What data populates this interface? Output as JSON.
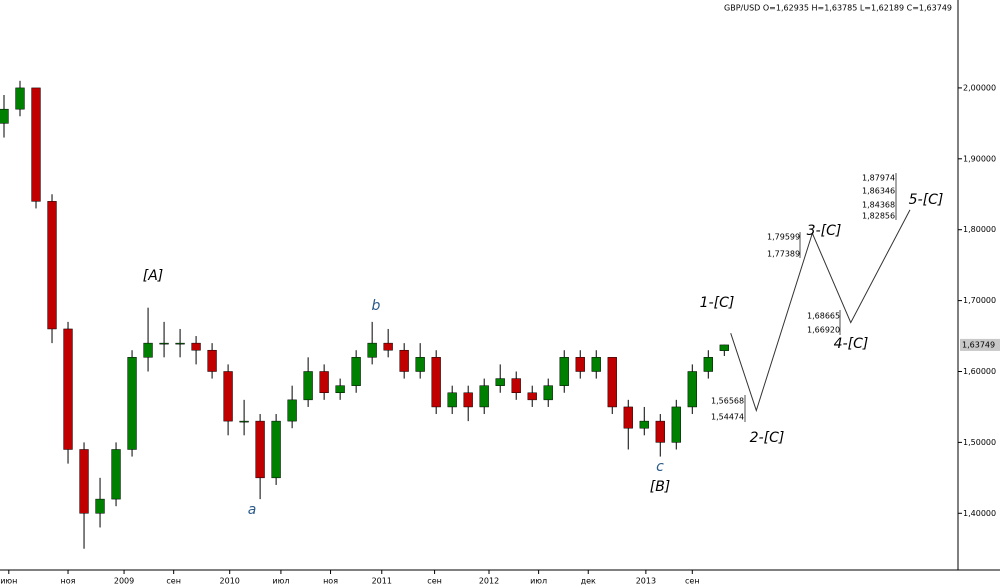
{
  "chart_data": {
    "type": "candlestick",
    "header": "GBP/USD O=1,62935 H=1,63785 L=1,62189 C=1,63749",
    "open": [
      1.95,
      1.97,
      2.0,
      1.84,
      1.66,
      1.49,
      1.4,
      1.42,
      1.49,
      1.62,
      1.64,
      1.64,
      1.64,
      1.63,
      1.6,
      1.53,
      1.53,
      1.45,
      1.53,
      1.56,
      1.6,
      1.57,
      1.58,
      1.62,
      1.64,
      1.63,
      1.6,
      1.62,
      1.55,
      1.57,
      1.55,
      1.58,
      1.59,
      1.57,
      1.56,
      1.58,
      1.62,
      1.6,
      1.62,
      1.55,
      1.52,
      1.53,
      1.5,
      1.55,
      1.6,
      1.62935
    ],
    "high": [
      1.99,
      2.01,
      2.0,
      1.85,
      1.67,
      1.5,
      1.45,
      1.5,
      1.63,
      1.69,
      1.67,
      1.66,
      1.65,
      1.64,
      1.61,
      1.56,
      1.54,
      1.54,
      1.58,
      1.62,
      1.61,
      1.59,
      1.63,
      1.67,
      1.66,
      1.64,
      1.64,
      1.63,
      1.58,
      1.58,
      1.59,
      1.61,
      1.6,
      1.58,
      1.59,
      1.63,
      1.63,
      1.63,
      1.62,
      1.56,
      1.55,
      1.54,
      1.56,
      1.61,
      1.63,
      1.63785
    ],
    "low": [
      1.93,
      1.96,
      1.83,
      1.64,
      1.47,
      1.35,
      1.38,
      1.41,
      1.48,
      1.6,
      1.62,
      1.62,
      1.61,
      1.59,
      1.51,
      1.51,
      1.42,
      1.44,
      1.52,
      1.55,
      1.56,
      1.56,
      1.57,
      1.61,
      1.62,
      1.59,
      1.59,
      1.54,
      1.54,
      1.53,
      1.54,
      1.57,
      1.56,
      1.55,
      1.55,
      1.57,
      1.59,
      1.59,
      1.54,
      1.49,
      1.51,
      1.48,
      1.49,
      1.54,
      1.59,
      1.62189
    ],
    "close": [
      1.97,
      2.0,
      1.84,
      1.66,
      1.49,
      1.4,
      1.42,
      1.49,
      1.62,
      1.64,
      1.64,
      1.64,
      1.63,
      1.6,
      1.53,
      1.53,
      1.45,
      1.53,
      1.56,
      1.6,
      1.57,
      1.58,
      1.62,
      1.64,
      1.63,
      1.6,
      1.62,
      1.55,
      1.57,
      1.55,
      1.58,
      1.59,
      1.57,
      1.56,
      1.58,
      1.62,
      1.6,
      1.62,
      1.55,
      1.52,
      1.53,
      1.5,
      1.55,
      1.6,
      1.62,
      1.63749
    ],
    "up_color": "#008000",
    "down_color": "#c00000",
    "projection": {
      "x": [
        45.4,
        47,
        50.5,
        52.9,
        56.6
      ],
      "values": [
        1.654,
        1.545,
        1.795,
        1.669,
        1.828
      ],
      "color": "#333333"
    },
    "last_label": "1,63749",
    "xlim": [
      -0.25,
      59.6
    ],
    "xticks": [
      {
        "value": 0.3,
        "label": "июн"
      },
      {
        "value": 4,
        "label": "ноя"
      },
      {
        "value": 7.5,
        "label": "2009"
      },
      {
        "value": 10.6,
        "label": "сен"
      },
      {
        "value": 14.1,
        "label": "2010"
      },
      {
        "value": 17.3,
        "label": "июл"
      },
      {
        "value": 20.4,
        "label": "ноя"
      },
      {
        "value": 23.6,
        "label": "2011"
      },
      {
        "value": 26.9,
        "label": "сен"
      },
      {
        "value": 30.3,
        "label": "2012"
      },
      {
        "value": 33.4,
        "label": "июл"
      },
      {
        "value": 36.5,
        "label": "дек"
      },
      {
        "value": 40.1,
        "label": "2013"
      },
      {
        "value": 43,
        "label": "сен"
      }
    ],
    "ylim": [
      1.32,
      2.124
    ],
    "yticks": [
      {
        "value": 1.4,
        "label": "1,40000"
      },
      {
        "value": 1.5,
        "label": "1,50000"
      },
      {
        "value": 1.6,
        "label": "1,60000"
      },
      {
        "value": 1.7,
        "label": "1,70000"
      },
      {
        "value": 1.8,
        "label": "1,80000"
      },
      {
        "value": 1.9,
        "label": "1,90000"
      },
      {
        "value": 2.0,
        "label": "2,00000"
      }
    ],
    "wave_labels": [
      "[A]",
      "b",
      "a",
      "c",
      "[B]",
      "1-[C]",
      "2-[C]",
      "3-[C]",
      "4-[C]",
      "5-[C]"
    ],
    "level_labels": [
      "1,56568",
      "1,54474",
      "1,79599",
      "1,77389",
      "1,68665",
      "1,66920",
      "1,87974",
      "1,86346",
      "1,84368",
      "1,82856"
    ]
  }
}
